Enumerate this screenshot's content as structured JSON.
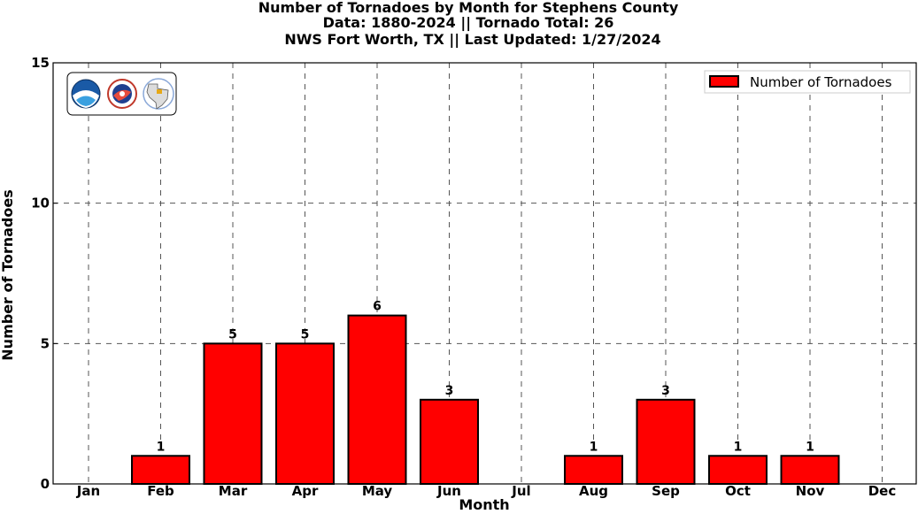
{
  "colors": {
    "bar_fill": "#ff0000",
    "bar_stroke": "#000000",
    "grid": "#555555",
    "background": "#ffffff"
  },
  "logos": [
    "noaa-logo",
    "nws-logo",
    "nws-fort-worth-texas-logo"
  ],
  "chart_data": {
    "type": "bar",
    "title": "Number of Tornadoes by Month for Stephens County",
    "subtitle": [
      "Data: 1880-2024 || Tornado Total: 26",
      "NWS Fort Worth, TX || Last Updated: 1/27/2024"
    ],
    "xlabel": "Month",
    "ylabel": "Number of Tornadoes",
    "categories": [
      "Jan",
      "Feb",
      "Mar",
      "Apr",
      "May",
      "Jun",
      "Jul",
      "Aug",
      "Sep",
      "Oct",
      "Nov",
      "Dec"
    ],
    "series": [
      {
        "name": "Number of Tornadoes",
        "values": [
          0,
          1,
          5,
          5,
          6,
          3,
          0,
          1,
          3,
          1,
          1,
          0
        ]
      }
    ],
    "data_labels": [
      "",
      "1",
      "5",
      "5",
      "6",
      "3",
      "",
      "1",
      "3",
      "1",
      "1",
      ""
    ],
    "ylim": [
      0,
      15
    ],
    "yticks": [
      0,
      5,
      10,
      15
    ],
    "grid": true,
    "legend_position": "top-right"
  }
}
